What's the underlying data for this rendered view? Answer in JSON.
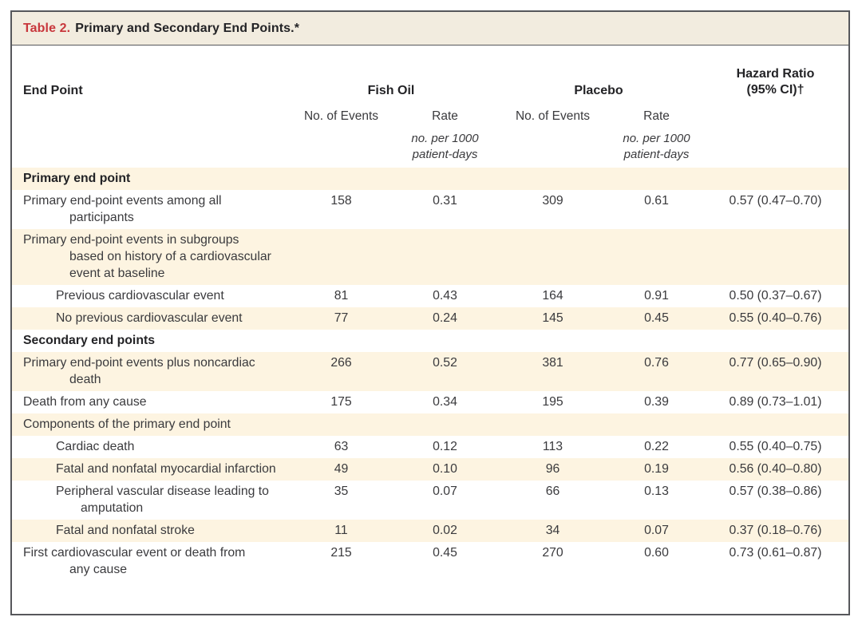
{
  "title": {
    "label": "Table 2.",
    "text": "Primary and Secondary End Points.*"
  },
  "header": {
    "endpoint": "End Point",
    "group1": "Fish Oil",
    "group2": "Placebo",
    "hazard_line1": "Hazard Ratio",
    "hazard_line2": "(95% CI)†",
    "events_label": "No. of Events",
    "rate_label": "Rate",
    "rate_units": "no. per 1000\npatient-days"
  },
  "colors": {
    "accent_red": "#c8373c",
    "stripe": "#fdf4e1",
    "title_bar": "#f2ecdf",
    "border": "#56575b"
  },
  "rows": [
    {
      "label": "Primary end point",
      "section": true,
      "indent": false,
      "stripe": true,
      "values": [
        "",
        "",
        "",
        "",
        ""
      ]
    },
    {
      "label": "Primary end-point events among all\nparticipants",
      "section": false,
      "indent": false,
      "stripe": false,
      "values": [
        "158",
        "0.31",
        "309",
        "0.61",
        "0.57 (0.47–0.70)"
      ]
    },
    {
      "label": "Primary end-point events in subgroups\nbased on history of a cardiovascular\nevent at baseline",
      "section": false,
      "indent": false,
      "stripe": true,
      "values": [
        "",
        "",
        "",
        "",
        ""
      ]
    },
    {
      "label": "Previous cardiovascular event",
      "section": false,
      "indent": true,
      "stripe": false,
      "values": [
        "81",
        "0.43",
        "164",
        "0.91",
        "0.50 (0.37–0.67)"
      ]
    },
    {
      "label": "No previous cardiovascular event",
      "section": false,
      "indent": true,
      "stripe": true,
      "values": [
        "77",
        "0.24",
        "145",
        "0.45",
        "0.55 (0.40–0.76)"
      ]
    },
    {
      "label": "Secondary end points",
      "section": true,
      "indent": false,
      "stripe": false,
      "values": [
        "",
        "",
        "",
        "",
        ""
      ]
    },
    {
      "label": "Primary end-point events plus noncardiac\ndeath",
      "section": false,
      "indent": false,
      "stripe": true,
      "values": [
        "266",
        "0.52",
        "381",
        "0.76",
        "0.77 (0.65–0.90)"
      ]
    },
    {
      "label": "Death from any cause",
      "section": false,
      "indent": false,
      "stripe": false,
      "values": [
        "175",
        "0.34",
        "195",
        "0.39",
        "0.89 (0.73–1.01)"
      ]
    },
    {
      "label": "Components of the primary end point",
      "section": false,
      "indent": false,
      "stripe": true,
      "values": [
        "",
        "",
        "",
        "",
        ""
      ]
    },
    {
      "label": "Cardiac death",
      "section": false,
      "indent": true,
      "stripe": false,
      "values": [
        "63",
        "0.12",
        "113",
        "0.22",
        "0.55 (0.40–0.75)"
      ]
    },
    {
      "label": "Fatal and nonfatal myocardial infarction",
      "section": false,
      "indent": true,
      "stripe": true,
      "values": [
        "49",
        "0.10",
        "96",
        "0.19",
        "0.56 (0.40–0.80)"
      ]
    },
    {
      "label": "Peripheral vascular disease leading to\namputation",
      "section": false,
      "indent": true,
      "stripe": false,
      "values": [
        "35",
        "0.07",
        "66",
        "0.13",
        "0.57 (0.38–0.86)"
      ]
    },
    {
      "label": "Fatal and nonfatal stroke",
      "section": false,
      "indent": true,
      "stripe": true,
      "values": [
        "11",
        "0.02",
        "34",
        "0.07",
        "0.37 (0.18–0.76)"
      ]
    },
    {
      "label": "First cardiovascular event or death from\nany cause",
      "section": false,
      "indent": false,
      "stripe": false,
      "values": [
        "215",
        "0.45",
        "270",
        "0.60",
        "0.73 (0.61–0.87)"
      ]
    }
  ]
}
